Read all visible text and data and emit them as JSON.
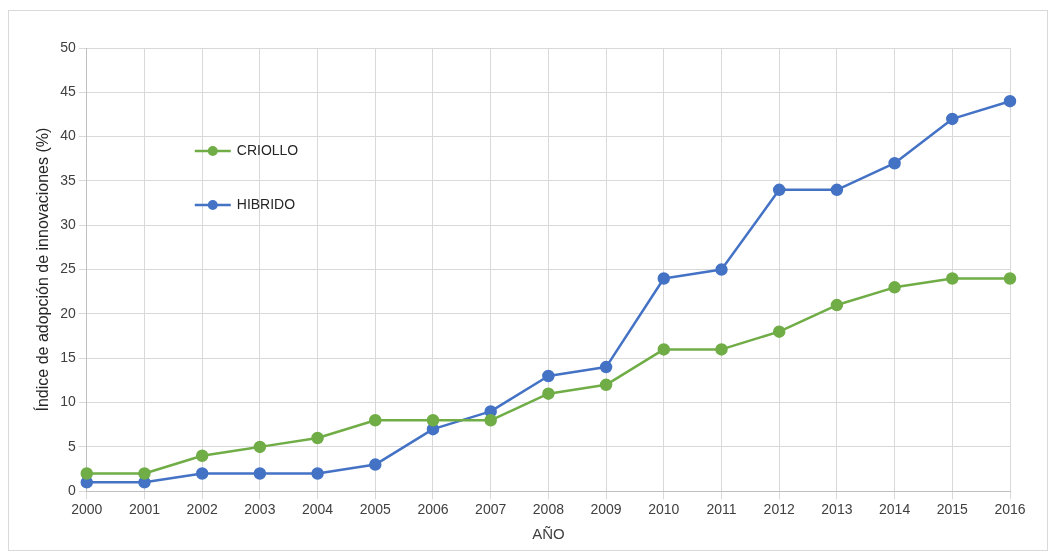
{
  "chart_data": {
    "type": "line",
    "xlabel": "AÑO",
    "ylabel": "Índice de adopción de innovaciones (%)",
    "categories": [
      "2000",
      "2001",
      "2002",
      "2003",
      "2004",
      "2005",
      "2006",
      "2007",
      "2008",
      "2009",
      "2010",
      "2011",
      "2012",
      "2013",
      "2014",
      "2015",
      "2016"
    ],
    "series": [
      {
        "name": "CRIOLLO",
        "color": "#70ad47",
        "values": [
          2,
          2,
          4,
          5,
          6,
          8,
          8,
          8,
          11,
          12,
          16,
          16,
          18,
          21,
          23,
          24,
          24
        ]
      },
      {
        "name": "HIBRIDO",
        "color": "#4472c4",
        "values": [
          1,
          1,
          2,
          2,
          2,
          3,
          7,
          9,
          13,
          14,
          24,
          25,
          34,
          34,
          37,
          42,
          44
        ]
      }
    ],
    "ylim": [
      0,
      50
    ],
    "yticks": [
      0,
      5,
      10,
      15,
      20,
      25,
      30,
      35,
      40,
      45,
      50
    ],
    "grid": true,
    "legend": "top left",
    "marker": "circle",
    "line_style": "solid"
  }
}
